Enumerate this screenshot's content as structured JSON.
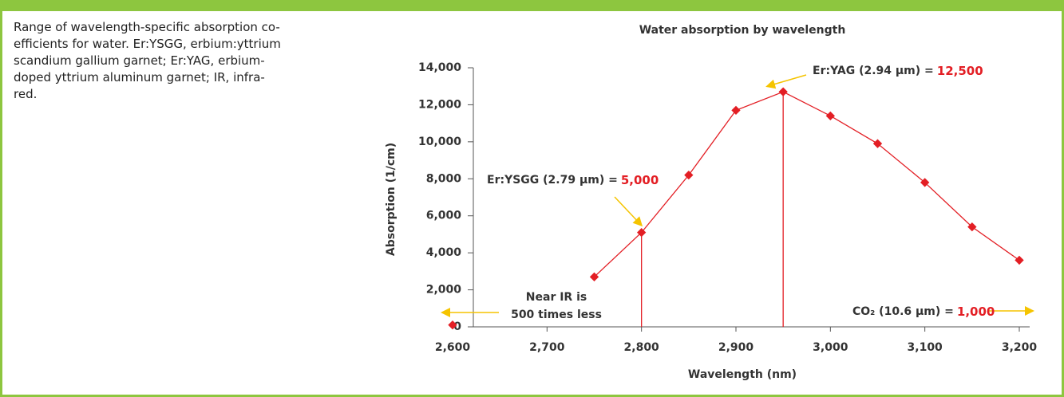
{
  "caption_lines": [
    "Range of wavelength-specific absorption co-",
    "efficients for water. Er:YSGG, erbium:yttrium",
    "scandium gallium garnet; Er:YAG, erbium-",
    "doped yttrium aluminum garnet; IR, infra-",
    "red."
  ],
  "chart_data": {
    "type": "line",
    "title": "Water absorption by wavelength",
    "x_label": "Wavelength (nm)",
    "y_label": "Absorption (1/cm)",
    "x": [
      2600,
      2650,
      2700,
      2750,
      2800,
      2850,
      2900,
      2950,
      3000,
      3050,
      3100,
      3150,
      3200
    ],
    "series": [
      {
        "color": "#e31e24",
        "values": [
          100,
          null,
          null,
          2700,
          5100,
          8200,
          11700,
          12700,
          11400,
          9900,
          7800,
          5400,
          3600
        ]
      }
    ],
    "xlim": [
      2600,
      3200
    ],
    "xticks": [
      {
        "value": 2600,
        "label": "2,600"
      },
      {
        "value": 2700,
        "label": "2,700"
      },
      {
        "value": 2800,
        "label": "2,800"
      },
      {
        "value": 2900,
        "label": "2,900"
      },
      {
        "value": 3000,
        "label": "3,000"
      },
      {
        "value": 3100,
        "label": "3,100"
      },
      {
        "value": 3200,
        "label": "3,200"
      }
    ],
    "ylim": [
      0,
      14000
    ],
    "yticks": [
      0,
      {
        "value": 2000,
        "label": "2,000"
      },
      {
        "value": 4000,
        "label": "4,000"
      },
      {
        "value": 6000,
        "label": "6,000"
      },
      {
        "value": 8000,
        "label": "8,000"
      },
      {
        "value": 10000,
        "label": "10,000"
      },
      {
        "value": 12000,
        "label": "12,000"
      },
      {
        "value": 14000,
        "label": "14,000"
      }
    ],
    "annotations": [
      {
        "text": "Er:YAG (2.94 μm) =",
        "highlight": "12,500"
      },
      {
        "text": "Er:YSGG (2.79 μm) =",
        "highlight": "5,000"
      },
      {
        "text": "Near IR is",
        "highlight": "500 times less"
      },
      {
        "text": "CO₂ (10.6 μm) =",
        "highlight": "1,000"
      }
    ]
  }
}
